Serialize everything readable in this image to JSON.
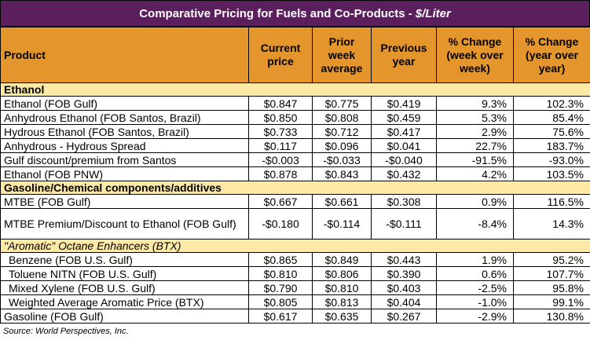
{
  "title": {
    "text": "Comparative Pricing for Fuels and Co-Products - ",
    "unit": "$/Liter"
  },
  "table": {
    "columns": [
      "Product",
      "Current price",
      "Prior week average",
      "Previous year",
      "% Change (week over week)",
      "% Change (year over year)"
    ],
    "sections": [
      {
        "name": "Ethanol",
        "rows": [
          [
            "Ethanol (FOB Gulf)",
            "$0.847",
            "$0.775",
            "$0.419",
            "9.3%",
            "102.3%"
          ],
          [
            "Anhydrous Ethanol (FOB Santos, Brazil)",
            "$0.850",
            "$0.808",
            "$0.459",
            "5.3%",
            "85.4%"
          ],
          [
            "Hydrous Ethanol (FOB Santos, Brazil)",
            "$0.733",
            "$0.712",
            "$0.417",
            "2.9%",
            "75.6%"
          ],
          [
            "Anhydrous - Hydrous Spread",
            "$0.117",
            "$0.096",
            "$0.041",
            "22.7%",
            "183.7%"
          ],
          [
            "Gulf discount/premium from Santos",
            "-$0.003",
            "-$0.033",
            "-$0.040",
            "-91.5%",
            "-93.0%"
          ],
          [
            "Ethanol (FOB PNW)",
            "$0.878",
            "$0.843",
            "$0.432",
            "4.2%",
            "103.5%"
          ]
        ]
      },
      {
        "name": "Gasoline/Chemical components/additives",
        "rows": [
          [
            "MTBE (FOB Gulf)",
            "$0.667",
            "$0.661",
            "$0.308",
            "0.9%",
            "116.5%"
          ],
          [
            "MTBE Premium/Discount to Ethanol (FOB Gulf)",
            "-$0.180",
            "-$0.114",
            "-$0.111",
            "-8.4%",
            "14.3%"
          ]
        ]
      },
      {
        "name": "\"Aromatic\" Octane Enhancers (BTX)",
        "rows": [
          [
            "Benzene (FOB U.S. Gulf)",
            "$0.865",
            "$0.849",
            "$0.443",
            "1.9%",
            "95.2%"
          ],
          [
            "Toluene NITN (FOB U.S. Gulf)",
            "$0.810",
            "$0.806",
            "$0.390",
            "0.6%",
            "107.7%"
          ],
          [
            "Mixed Xylene (FOB U.S. Gulf)",
            "$0.790",
            "$0.810",
            "$0.403",
            "-2.5%",
            "95.8%"
          ],
          [
            "Weighted Average Aromatic Price (BTX)",
            "$0.805",
            "$0.813",
            "$0.404",
            "-1.0%",
            "99.1%"
          ],
          [
            "Gasoline (FOB Gulf)",
            "$0.617",
            "$0.635",
            "$0.267",
            "-2.9%",
            "130.8%"
          ]
        ]
      }
    ]
  },
  "source": "Source: World Perspectives, Inc."
}
